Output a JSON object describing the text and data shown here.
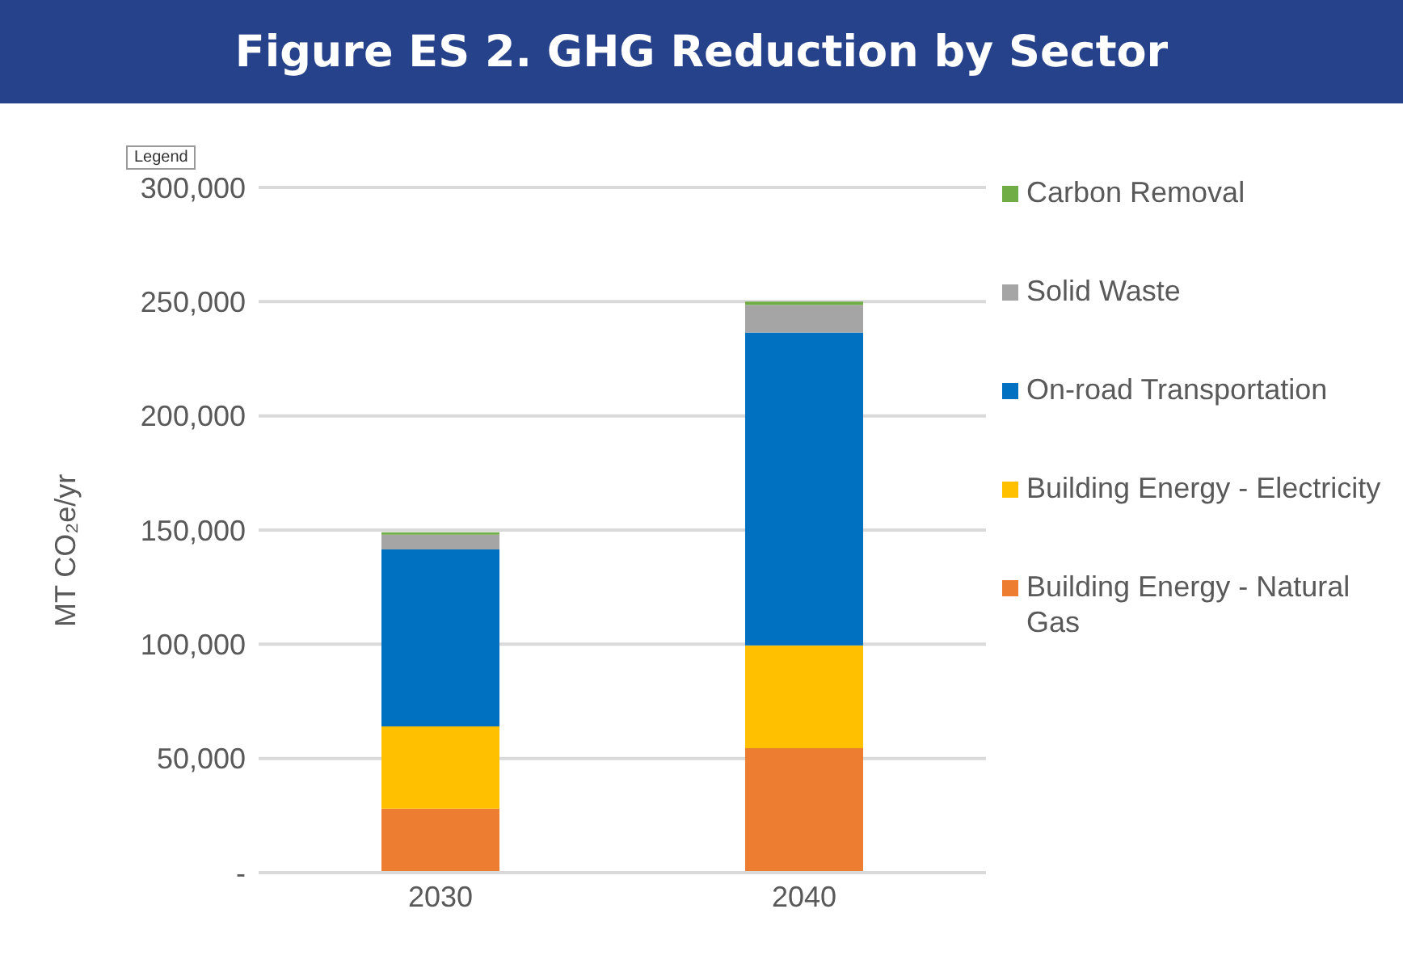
{
  "chart_data": {
    "type": "bar",
    "title": "Figure ES 2.  GHG Reduction by Sector",
    "ylabel": "MT CO₂e/yr",
    "categories": [
      "2030",
      "2040"
    ],
    "stacked": true,
    "series": [
      {
        "name": "Building Energy - Natural Gas",
        "color": "#ed7d31",
        "values": [
          28000,
          54500
        ]
      },
      {
        "name": "Building Energy - Electricity",
        "color": "#ffc000",
        "values": [
          36000,
          45000
        ]
      },
      {
        "name": "On-road Transportation",
        "color": "#0070c0",
        "values": [
          77500,
          137000
        ]
      },
      {
        "name": "Solid Waste",
        "color": "#a5a5a5",
        "values": [
          6500,
          12000
        ]
      },
      {
        "name": "Carbon Removal",
        "color": "#70ad47",
        "values": [
          1000,
          1500
        ]
      }
    ],
    "ylim": [
      0,
      300000
    ],
    "yticks": [
      {
        "value": 0,
        "label": "-"
      },
      {
        "value": 50000,
        "label": "50,000"
      },
      {
        "value": 100000,
        "label": "100,000"
      },
      {
        "value": 150000,
        "label": "150,000"
      },
      {
        "value": 200000,
        "label": "200,000"
      },
      {
        "value": 250000,
        "label": "250,000"
      },
      {
        "value": 300000,
        "label": "300,000"
      }
    ],
    "grid": "y",
    "legend": "right",
    "annotations": [
      "Legend"
    ]
  }
}
